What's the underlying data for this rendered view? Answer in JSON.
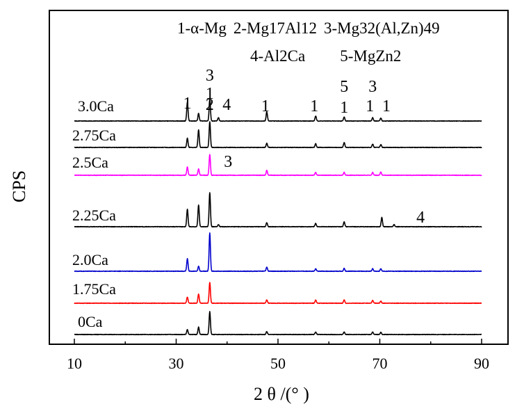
{
  "chart_data": {
    "type": "line",
    "xlabel": "2 θ /(°  )",
    "ylabel": "CPS",
    "xlim": [
      10,
      90
    ],
    "xticks": [
      "10",
      "30",
      "50",
      "70",
      "90"
    ],
    "grid": false,
    "legend": {
      "placement": "top-center",
      "line1": [
        "1-α-Mg",
        "2-Mg17Al12",
        "3-Mg32(Al,Zn)49"
      ],
      "line2": [
        "4-Al2Ca",
        "5-MgZn2"
      ]
    },
    "series": [
      {
        "name": "3.0Ca",
        "color": "#000000",
        "peaks": [
          [
            32.2,
            0.45
          ],
          [
            34.4,
            0.18
          ],
          [
            36.6,
            0.52
          ],
          [
            38.3,
            0.08
          ],
          [
            47.8,
            0.22
          ],
          [
            57.4,
            0.12
          ],
          [
            63.0,
            0.1
          ],
          [
            68.6,
            0.08
          ],
          [
            70.2,
            0.07
          ]
        ]
      },
      {
        "name": "2.75Ca",
        "color": "#000000",
        "peaks": [
          [
            32.2,
            0.22
          ],
          [
            34.4,
            0.42
          ],
          [
            36.6,
            0.62
          ],
          [
            47.8,
            0.1
          ],
          [
            57.4,
            0.09
          ],
          [
            63.0,
            0.12
          ],
          [
            68.6,
            0.08
          ],
          [
            70.2,
            0.07
          ]
        ]
      },
      {
        "name": "2.5Ca",
        "color": "#ff00ff",
        "peaks": [
          [
            32.2,
            0.2
          ],
          [
            34.4,
            0.15
          ],
          [
            36.6,
            0.5
          ],
          [
            47.8,
            0.12
          ],
          [
            57.4,
            0.07
          ],
          [
            63.0,
            0.07
          ],
          [
            68.6,
            0.07
          ],
          [
            70.2,
            0.08
          ]
        ]
      },
      {
        "name": "2.25Ca",
        "color": "#000000",
        "peaks": [
          [
            32.2,
            0.42
          ],
          [
            34.4,
            0.52
          ],
          [
            36.6,
            0.82
          ],
          [
            38.3,
            0.05
          ],
          [
            47.8,
            0.1
          ],
          [
            57.4,
            0.08
          ],
          [
            63.0,
            0.12
          ],
          [
            70.4,
            0.22
          ],
          [
            72.8,
            0.05
          ]
        ]
      },
      {
        "name": "2.0Ca",
        "color": "#0000cc",
        "peaks": [
          [
            32.2,
            0.3
          ],
          [
            34.4,
            0.12
          ],
          [
            36.6,
            0.92
          ],
          [
            47.8,
            0.1
          ],
          [
            57.4,
            0.06
          ],
          [
            63.0,
            0.07
          ],
          [
            68.6,
            0.06
          ],
          [
            70.2,
            0.06
          ]
        ]
      },
      {
        "name": "1.75Ca",
        "color": "#ff0000",
        "peaks": [
          [
            32.2,
            0.15
          ],
          [
            34.4,
            0.22
          ],
          [
            36.6,
            0.5
          ],
          [
            47.8,
            0.08
          ],
          [
            57.4,
            0.08
          ],
          [
            63.0,
            0.08
          ],
          [
            68.6,
            0.07
          ],
          [
            70.2,
            0.05
          ]
        ]
      },
      {
        "name": "0Ca",
        "color": "#000000",
        "peaks": [
          [
            32.2,
            0.12
          ],
          [
            34.4,
            0.18
          ],
          [
            36.6,
            0.55
          ],
          [
            47.8,
            0.07
          ],
          [
            57.4,
            0.06
          ],
          [
            63.0,
            0.06
          ],
          [
            68.6,
            0.06
          ],
          [
            70.2,
            0.05
          ]
        ]
      }
    ],
    "annotations": [
      {
        "text": "1",
        "x": 32.2,
        "series": "3.0Ca"
      },
      {
        "text": "2",
        "x": 34.4,
        "series": "3.0Ca"
      },
      {
        "text": "3",
        "x": 36.6,
        "series": "3.0Ca"
      },
      {
        "text": "1",
        "x": 36.6,
        "series": "3.0Ca"
      },
      {
        "text": "4",
        "x": 38.3,
        "series": "3.0Ca"
      },
      {
        "text": "1",
        "x": 47.8,
        "series": "3.0Ca"
      },
      {
        "text": "1",
        "x": 57.4,
        "series": "3.0Ca"
      },
      {
        "text": "5",
        "x": 63.0,
        "series": "3.0Ca"
      },
      {
        "text": "1",
        "x": 63.0,
        "series": "3.0Ca"
      },
      {
        "text": "3",
        "x": 68.6,
        "series": "3.0Ca"
      },
      {
        "text": "1",
        "x": 68.6,
        "series": "3.0Ca"
      },
      {
        "text": "1",
        "x": 70.2,
        "series": "3.0Ca"
      },
      {
        "text": "3",
        "x": 38.3,
        "series": "2.5Ca"
      },
      {
        "text": "4",
        "x": 78.0,
        "series": "2.25Ca"
      }
    ]
  }
}
